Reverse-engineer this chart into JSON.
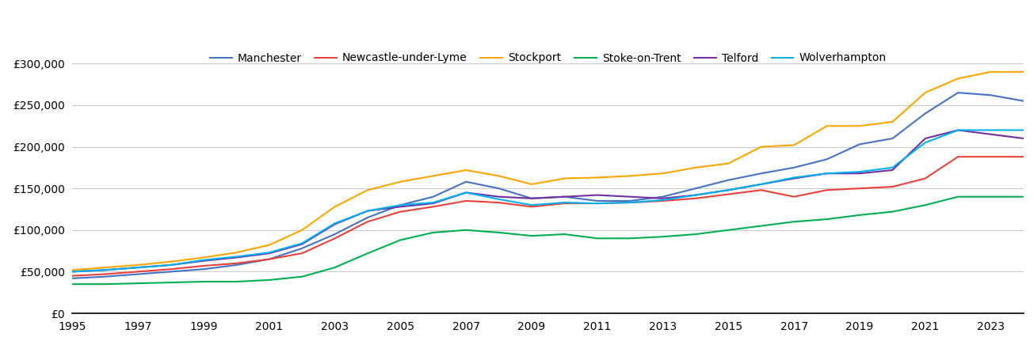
{
  "years": [
    1995,
    1996,
    1997,
    1998,
    1999,
    2000,
    2001,
    2002,
    2003,
    2004,
    2005,
    2006,
    2007,
    2008,
    2009,
    2010,
    2011,
    2012,
    2013,
    2014,
    2015,
    2016,
    2017,
    2018,
    2019,
    2020,
    2021,
    2022,
    2023,
    2024
  ],
  "Manchester": [
    42000,
    44000,
    47000,
    50000,
    53000,
    58000,
    65000,
    78000,
    95000,
    115000,
    130000,
    140000,
    158000,
    150000,
    138000,
    140000,
    135000,
    135000,
    140000,
    150000,
    160000,
    168000,
    175000,
    185000,
    203000,
    210000,
    240000,
    265000,
    262000,
    255000
  ],
  "Newcastle_under_Lyme": [
    45000,
    47000,
    50000,
    53000,
    57000,
    60000,
    65000,
    72000,
    90000,
    110000,
    122000,
    128000,
    135000,
    133000,
    128000,
    132000,
    132000,
    133000,
    135000,
    138000,
    143000,
    148000,
    140000,
    148000,
    150000,
    152000,
    162000,
    188000,
    188000,
    188000
  ],
  "Stockport": [
    52000,
    55000,
    58000,
    62000,
    67000,
    73000,
    82000,
    100000,
    128000,
    148000,
    158000,
    165000,
    172000,
    165000,
    155000,
    162000,
    163000,
    165000,
    168000,
    175000,
    180000,
    200000,
    202000,
    225000,
    225000,
    230000,
    265000,
    282000,
    290000,
    290000
  ],
  "Stoke_on_Trent": [
    35000,
    35000,
    36000,
    37000,
    38000,
    38000,
    40000,
    44000,
    55000,
    72000,
    88000,
    97000,
    100000,
    97000,
    93000,
    95000,
    90000,
    90000,
    92000,
    95000,
    100000,
    105000,
    110000,
    113000,
    118000,
    122000,
    130000,
    140000,
    140000,
    140000
  ],
  "Telford": [
    50000,
    52000,
    55000,
    58000,
    63000,
    67000,
    72000,
    83000,
    107000,
    123000,
    128000,
    132000,
    145000,
    140000,
    138000,
    140000,
    142000,
    140000,
    138000,
    142000,
    148000,
    155000,
    162000,
    168000,
    168000,
    172000,
    210000,
    220000,
    215000,
    210000
  ],
  "Wolverhampton": [
    50000,
    52000,
    55000,
    58000,
    64000,
    68000,
    73000,
    84000,
    108000,
    123000,
    130000,
    133000,
    145000,
    137000,
    130000,
    133000,
    132000,
    133000,
    136000,
    142000,
    148000,
    155000,
    163000,
    168000,
    170000,
    175000,
    205000,
    220000,
    220000,
    220000
  ],
  "colors": {
    "Manchester": "#4472C4",
    "Newcastle_under_Lyme": "#E8413A",
    "Stockport": "#FFA500",
    "Stoke_on_Trent": "#00B050",
    "Telford": "#7030A0",
    "Wolverhampton": "#00B0F0"
  },
  "legend_labels": {
    "Manchester": "Manchester",
    "Newcastle_under_Lyme": "Newcastle-under-Lyme",
    "Stockport": "Stockport",
    "Stoke_on_Trent": "Stoke-on-Trent",
    "Telford": "Telford",
    "Wolverhampton": "Wolverhampton"
  },
  "ylim": [
    0,
    325000
  ],
  "yticks": [
    0,
    50000,
    100000,
    150000,
    200000,
    250000,
    300000
  ],
  "xticks": [
    1995,
    1997,
    1999,
    2001,
    2003,
    2005,
    2007,
    2009,
    2011,
    2013,
    2015,
    2017,
    2019,
    2021,
    2023
  ],
  "xlim": [
    1995,
    2024
  ],
  "background_color": "#ffffff",
  "grid_color": "#cccccc",
  "line_width": 1.5,
  "legend_fontsize": 10,
  "tick_fontsize": 10
}
